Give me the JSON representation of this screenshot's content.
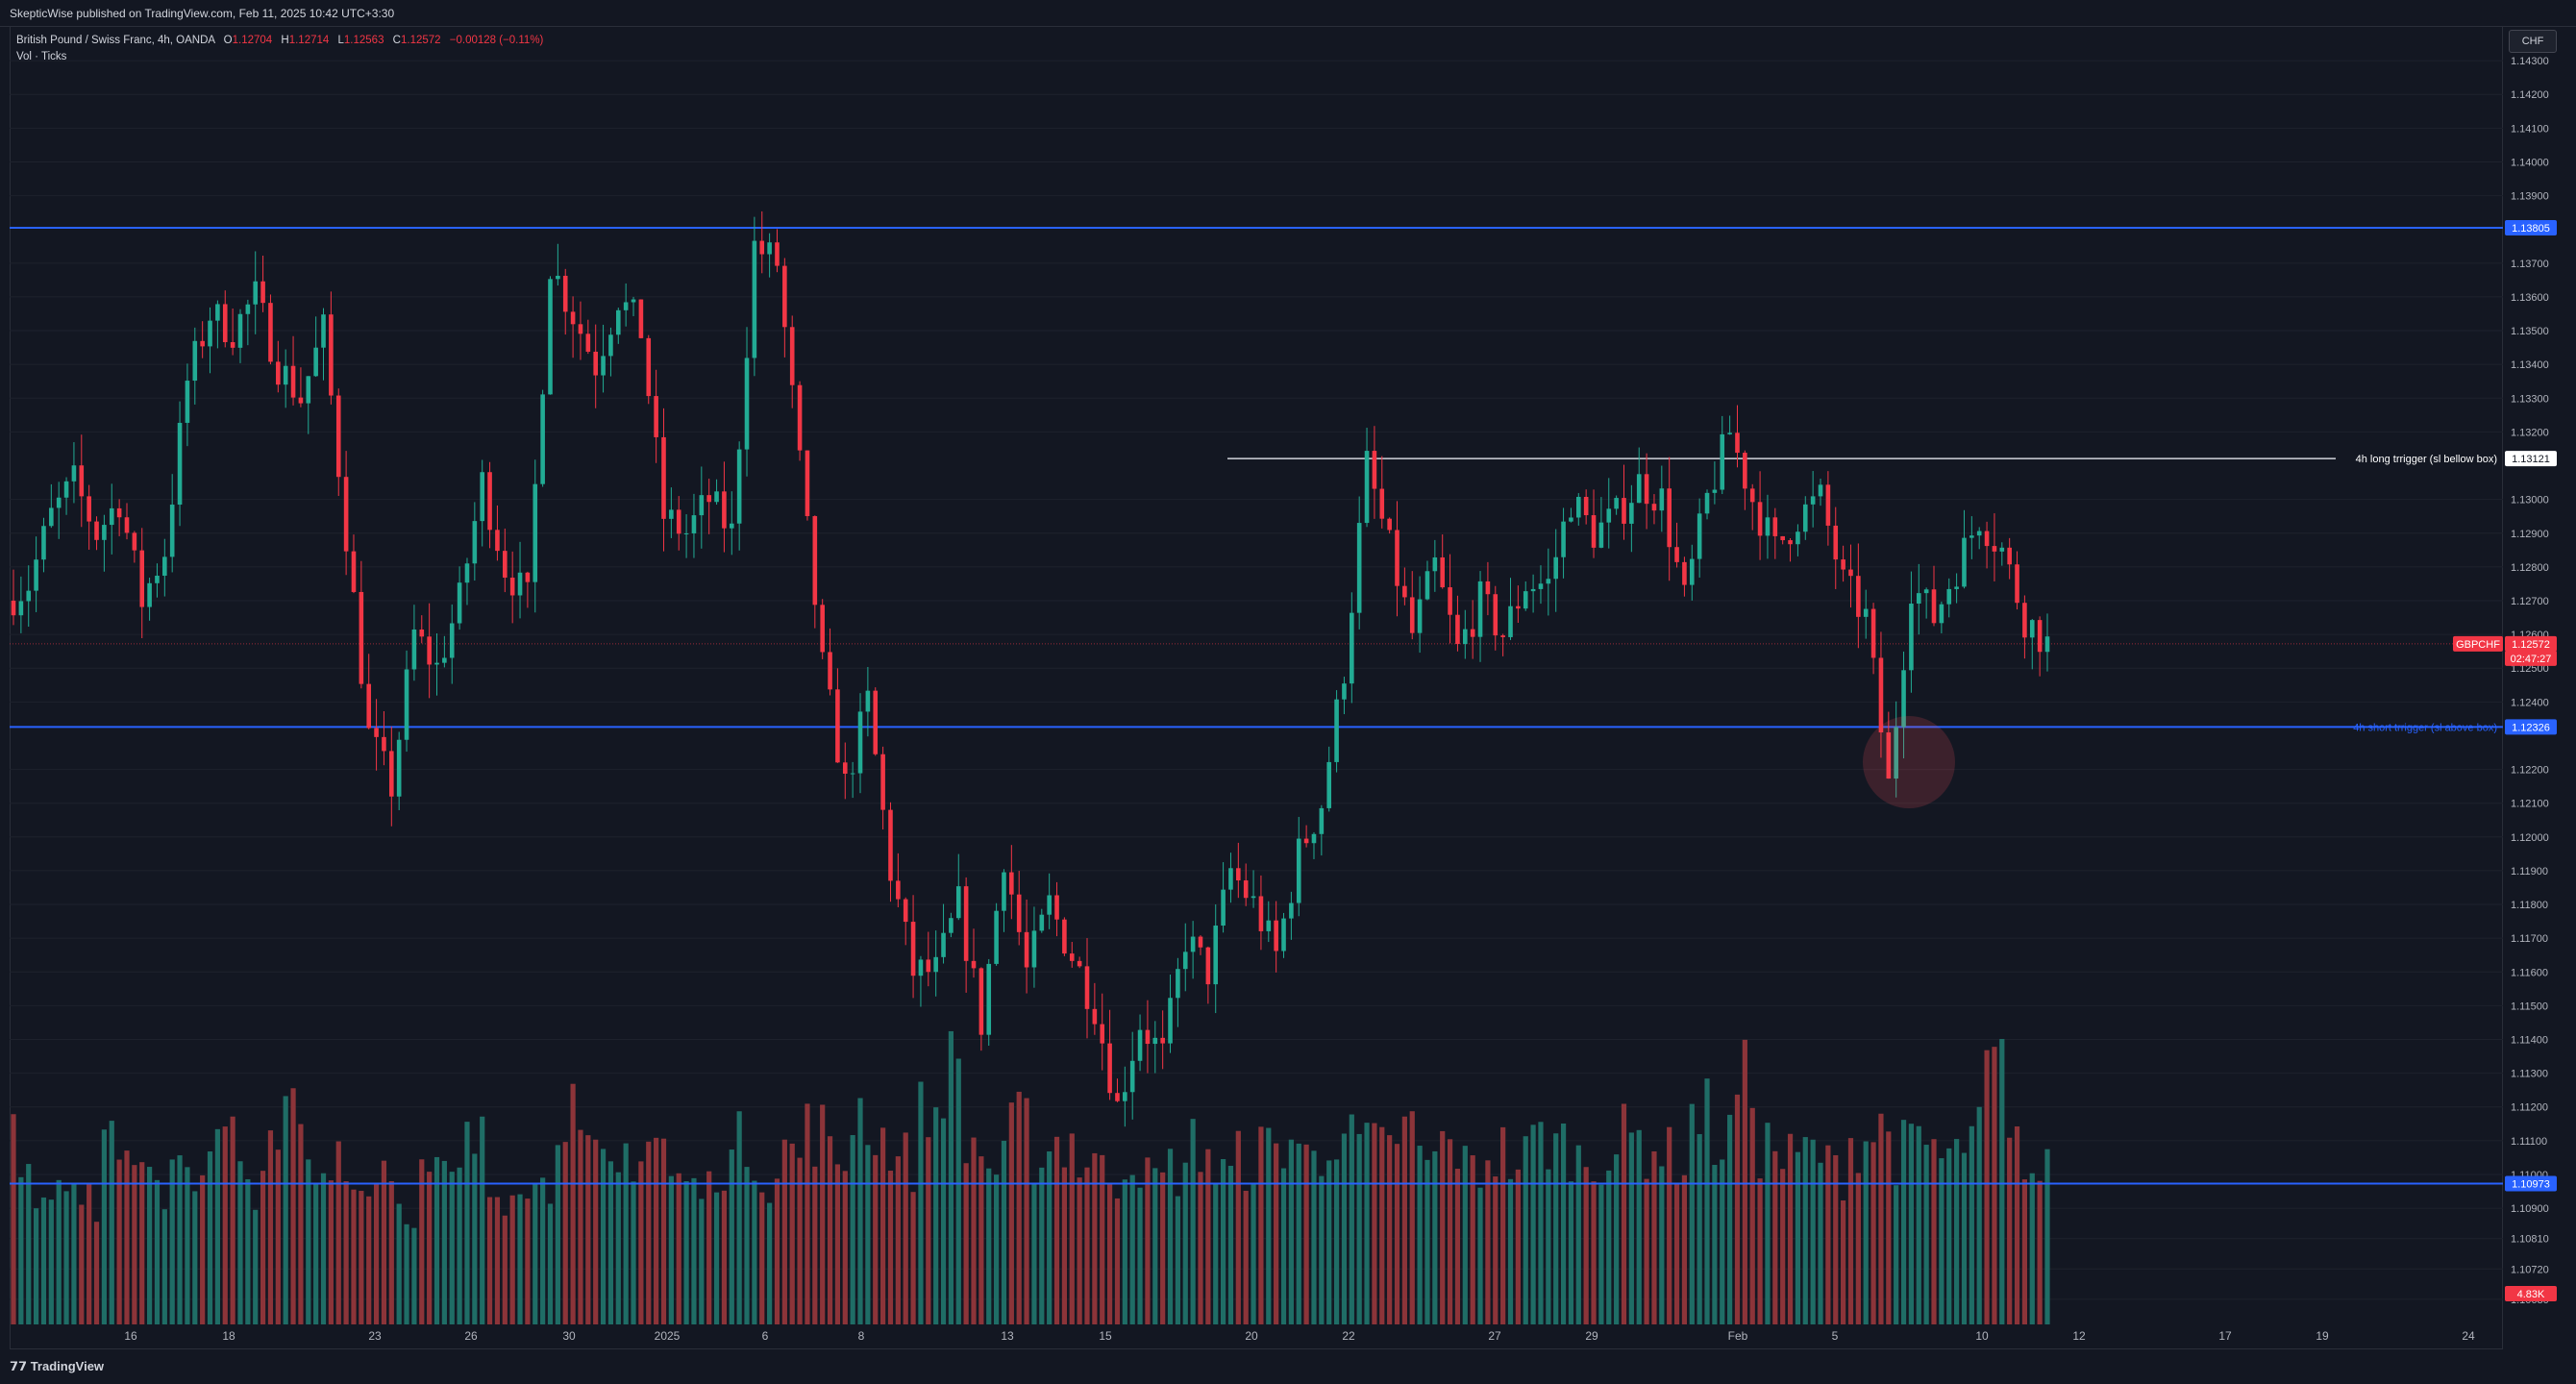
{
  "header": {
    "published": "SkepticWise published on TradingView.com, Feb 11, 2025 10:42 UTC+3:30"
  },
  "legend": {
    "symbol": "British Pound / Swiss Franc, 4h, OANDA",
    "o_label": "O",
    "o_value": "1.12704",
    "h_label": "H",
    "h_value": "1.12714",
    "l_label": "L",
    "l_value": "1.12563",
    "c_label": "C",
    "c_value": "1.12572",
    "change": "−0.00128 (−0.11%)",
    "volume_indicator": "Vol · Ticks"
  },
  "currency": "CHF",
  "footer": {
    "brand": "TradingView"
  },
  "colors": {
    "background": "#131722",
    "up": "#22ab94",
    "down": "#f23645",
    "volume_up": "#1f6d66",
    "volume_down": "#8c3439",
    "hline": "#2962ff",
    "grid": "#1e222d"
  },
  "chart_data": {
    "type": "candlestick",
    "symbol": "GBPCHF",
    "timeframe": "4h",
    "ylim": [
      1.1055,
      1.144
    ],
    "y_ticks": [
      "1.14300",
      "1.14200",
      "1.14100",
      "1.14000",
      "1.13900",
      "1.13700",
      "1.13600",
      "1.13500",
      "1.13400",
      "1.13300",
      "1.13200",
      "1.13000",
      "1.12900",
      "1.12800",
      "1.12700",
      "1.12600",
      "1.12500",
      "1.12400",
      "1.12200",
      "1.12100",
      "1.12000",
      "1.11900",
      "1.11800",
      "1.11700",
      "1.11600",
      "1.11500",
      "1.11400",
      "1.11300",
      "1.11200",
      "1.11100",
      "1.11000",
      "1.10900",
      "1.10810",
      "1.10720",
      "1.10630"
    ],
    "x_ticks": [
      "16",
      "18",
      "23",
      "26",
      "30",
      "2025",
      "6",
      "8",
      "13",
      "15",
      "20",
      "22",
      "27",
      "29",
      "Feb",
      "5",
      "10",
      "12",
      "17",
      "19",
      "24"
    ],
    "last_price": "1.12572",
    "countdown": "02:47:27",
    "volume_last": "4.83K",
    "horizontal_lines": [
      {
        "price": 1.13805,
        "label": "1.13805",
        "text": ""
      },
      {
        "price": 1.12326,
        "label": "1.12326",
        "text": "4h short trrigger (sl above box)"
      },
      {
        "price": 1.10973,
        "label": "1.10973",
        "text": ""
      }
    ],
    "trend_line": {
      "price": 1.13121,
      "label": "1.13121",
      "text": "4h long trrigger (sl bellow box)"
    },
    "anchors": [
      1.127,
      1.1275,
      1.1295,
      1.1305,
      1.129,
      1.13,
      1.127,
      1.1285,
      1.1335,
      1.1355,
      1.135,
      1.136,
      1.134,
      1.133,
      1.135,
      1.129,
      1.123,
      1.1215,
      1.126,
      1.125,
      1.127,
      1.1305,
      1.128,
      1.127,
      1.137,
      1.1355,
      1.134,
      1.136,
      1.135,
      1.1295,
      1.129,
      1.13,
      1.129,
      1.1375,
      1.137,
      1.131,
      1.125,
      1.1215,
      1.124,
      1.119,
      1.116,
      1.116,
      1.118,
      1.1145,
      1.1195,
      1.116,
      1.118,
      1.1165,
      1.115,
      1.112,
      1.1145,
      1.1135,
      1.117,
      1.116,
      1.119,
      1.118,
      1.1165,
      1.1195,
      1.121,
      1.125,
      1.131,
      1.1285,
      1.126,
      1.128,
      1.1255,
      1.127,
      1.126,
      1.1275,
      1.1275,
      1.13,
      1.129,
      1.1295,
      1.1305,
      1.13,
      1.127,
      1.13,
      1.132,
      1.13,
      1.1285,
      1.1295,
      1.13,
      1.1275,
      1.1265,
      1.1215,
      1.1275,
      1.1265,
      1.128,
      1.1295,
      1.1285,
      1.1265,
      1.12572
    ],
    "volumes": [
      0.6,
      0.45,
      0.55,
      0.4,
      0.65,
      0.5,
      0.45,
      0.58,
      0.52,
      0.62,
      0.48,
      0.55,
      0.7,
      0.5,
      0.6,
      0.45,
      0.55,
      0.4,
      0.5,
      0.48,
      0.6,
      0.45,
      0.52,
      0.46,
      0.75,
      0.55,
      0.5,
      0.58,
      0.62,
      0.48,
      0.45,
      0.55,
      0.6,
      0.5,
      0.58,
      0.65,
      0.55,
      0.72,
      0.62,
      0.55,
      0.7,
      0.85,
      0.6,
      0.52,
      0.66,
      0.58,
      0.62,
      0.55,
      0.5,
      0.56,
      0.48,
      0.52,
      0.6,
      0.5,
      0.55,
      0.58,
      0.62,
      0.55,
      0.66,
      0.6,
      0.58,
      0.65,
      0.55,
      0.6,
      0.52,
      0.58,
      0.55,
      0.62,
      0.6,
      0.55,
      0.58,
      0.62,
      0.6,
      0.56,
      0.7,
      0.62,
      0.8,
      0.6,
      0.55,
      0.58,
      0.52,
      0.62,
      0.65,
      0.58,
      0.6,
      0.55,
      0.62,
      0.85,
      0.58,
      0.5,
      0.2
    ]
  }
}
